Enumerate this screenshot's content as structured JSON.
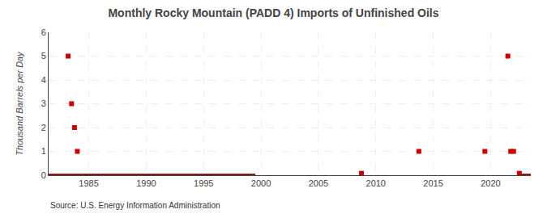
{
  "chart_data": {
    "type": "scatter",
    "title": "Monthly Rocky Mountain (PADD 4) Imports of Unfinished Oils",
    "ylabel": "Thousand Barrels per Day",
    "annotations": [
      "Source: U.S. Energy Information Administration"
    ],
    "series": [
      {
        "type": "line",
        "color": "#8b0000",
        "line_style": "solid",
        "x": [
          1981.5,
          1999.5,
          null,
          2022.5,
          2023.5
        ],
        "values": [
          0,
          0,
          null,
          0,
          0
        ]
      },
      {
        "type": "scatter",
        "color": "#cc0000",
        "marker": "square",
        "x": [
          1983.2,
          1983.5,
          1983.75,
          1984.0,
          2008.75,
          2013.75,
          2019.5,
          2021.5,
          2021.75,
          2022.0,
          2022.5
        ],
        "values": [
          5.0,
          3.0,
          2.0,
          1.0,
          0.08,
          1.0,
          1.0,
          5.0,
          1.0,
          1.0,
          0.08
        ]
      }
    ],
    "xlim": [
      1981.5,
      2023.5
    ],
    "ylim": [
      0,
      6
    ],
    "xticks": [
      1985,
      1990,
      1995,
      2000,
      2005,
      2010,
      2015,
      2020
    ],
    "yticks": [
      0,
      1,
      2,
      3,
      4,
      5,
      6
    ],
    "grid": true
  }
}
